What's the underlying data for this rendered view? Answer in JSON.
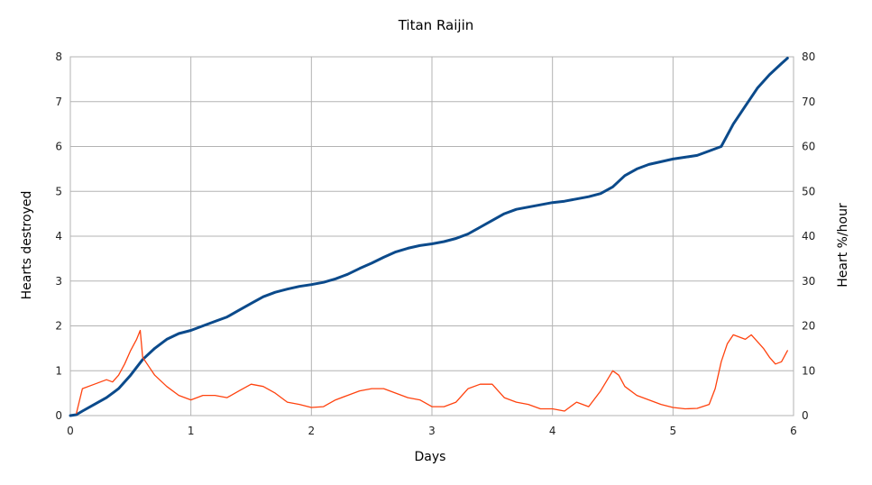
{
  "chart_data": {
    "type": "line",
    "title": "Titan Raijin",
    "xlabel": "Days",
    "ylabel_left": "Hearts destroyed",
    "ylabel_right": "Heart %/hour",
    "xlim": [
      0,
      6
    ],
    "ylim_left": [
      0,
      8
    ],
    "ylim_right": [
      0,
      80
    ],
    "x_ticks": [
      "0",
      "1",
      "2",
      "3",
      "4",
      "5",
      "6"
    ],
    "y_left_ticks": [
      "0",
      "1",
      "2",
      "3",
      "4",
      "5",
      "6",
      "7",
      "8"
    ],
    "y_right_ticks": [
      "0",
      "10",
      "20",
      "30",
      "40",
      "50",
      "60",
      "70",
      "80"
    ],
    "grid": true,
    "legend": "none",
    "series": [
      {
        "axis": "left",
        "color": "#0b4a8b",
        "x": [
          0,
          0.05,
          0.1,
          0.2,
          0.3,
          0.4,
          0.5,
          0.6,
          0.7,
          0.8,
          0.9,
          1.0,
          1.1,
          1.2,
          1.3,
          1.4,
          1.5,
          1.6,
          1.7,
          1.8,
          1.9,
          2.0,
          2.1,
          2.2,
          2.3,
          2.4,
          2.5,
          2.6,
          2.7,
          2.8,
          2.9,
          3.0,
          3.1,
          3.2,
          3.3,
          3.4,
          3.5,
          3.6,
          3.7,
          3.8,
          3.9,
          4.0,
          4.1,
          4.2,
          4.3,
          4.4,
          4.5,
          4.6,
          4.7,
          4.8,
          4.9,
          5.0,
          5.1,
          5.2,
          5.3,
          5.4,
          5.5,
          5.6,
          5.7,
          5.8,
          5.9,
          5.95
        ],
        "y": [
          0,
          0.02,
          0.1,
          0.25,
          0.4,
          0.6,
          0.9,
          1.25,
          1.5,
          1.7,
          1.83,
          1.9,
          2.0,
          2.1,
          2.2,
          2.35,
          2.5,
          2.65,
          2.75,
          2.82,
          2.88,
          2.92,
          2.97,
          3.05,
          3.15,
          3.28,
          3.4,
          3.53,
          3.65,
          3.73,
          3.79,
          3.83,
          3.88,
          3.95,
          4.05,
          4.2,
          4.35,
          4.5,
          4.6,
          4.65,
          4.7,
          4.75,
          4.78,
          4.83,
          4.88,
          4.95,
          5.1,
          5.35,
          5.5,
          5.6,
          5.66,
          5.72,
          5.76,
          5.8,
          5.9,
          6.0,
          6.5,
          6.9,
          7.3,
          7.6,
          7.85,
          7.97
        ]
      },
      {
        "axis": "right",
        "color": "#ff420e",
        "x": [
          0.05,
          0.1,
          0.2,
          0.3,
          0.35,
          0.4,
          0.45,
          0.5,
          0.55,
          0.58,
          0.6,
          0.65,
          0.7,
          0.8,
          0.9,
          1.0,
          1.1,
          1.2,
          1.3,
          1.4,
          1.5,
          1.6,
          1.7,
          1.8,
          1.9,
          2.0,
          2.1,
          2.2,
          2.3,
          2.4,
          2.5,
          2.6,
          2.7,
          2.8,
          2.9,
          3.0,
          3.1,
          3.2,
          3.3,
          3.4,
          3.5,
          3.6,
          3.7,
          3.8,
          3.9,
          4.0,
          4.1,
          4.2,
          4.3,
          4.4,
          4.5,
          4.55,
          4.6,
          4.7,
          4.8,
          4.9,
          5.0,
          5.1,
          5.2,
          5.3,
          5.35,
          5.4,
          5.45,
          5.5,
          5.6,
          5.65,
          5.7,
          5.75,
          5.8,
          5.85,
          5.9,
          5.95
        ],
        "y": [
          0.5,
          6.0,
          7.0,
          8.0,
          7.5,
          9.0,
          11.5,
          14.5,
          17.0,
          19.0,
          13.0,
          11.0,
          9.0,
          6.5,
          4.5,
          3.5,
          4.5,
          4.5,
          4.0,
          5.5,
          7.0,
          6.5,
          5.0,
          3.0,
          2.5,
          1.8,
          2.0,
          3.5,
          4.5,
          5.5,
          6.0,
          6.0,
          5.0,
          4.0,
          3.5,
          2.0,
          2.0,
          3.0,
          6.0,
          7.0,
          7.0,
          4.0,
          3.0,
          2.5,
          1.5,
          1.5,
          1.0,
          3.0,
          2.0,
          5.5,
          10.0,
          9.0,
          6.5,
          4.5,
          3.5,
          2.5,
          1.8,
          1.5,
          1.6,
          2.5,
          6.0,
          12.0,
          16.0,
          18.0,
          17.0,
          18.0,
          16.5,
          15.0,
          13.0,
          11.5,
          12.0,
          14.5
        ]
      }
    ]
  }
}
